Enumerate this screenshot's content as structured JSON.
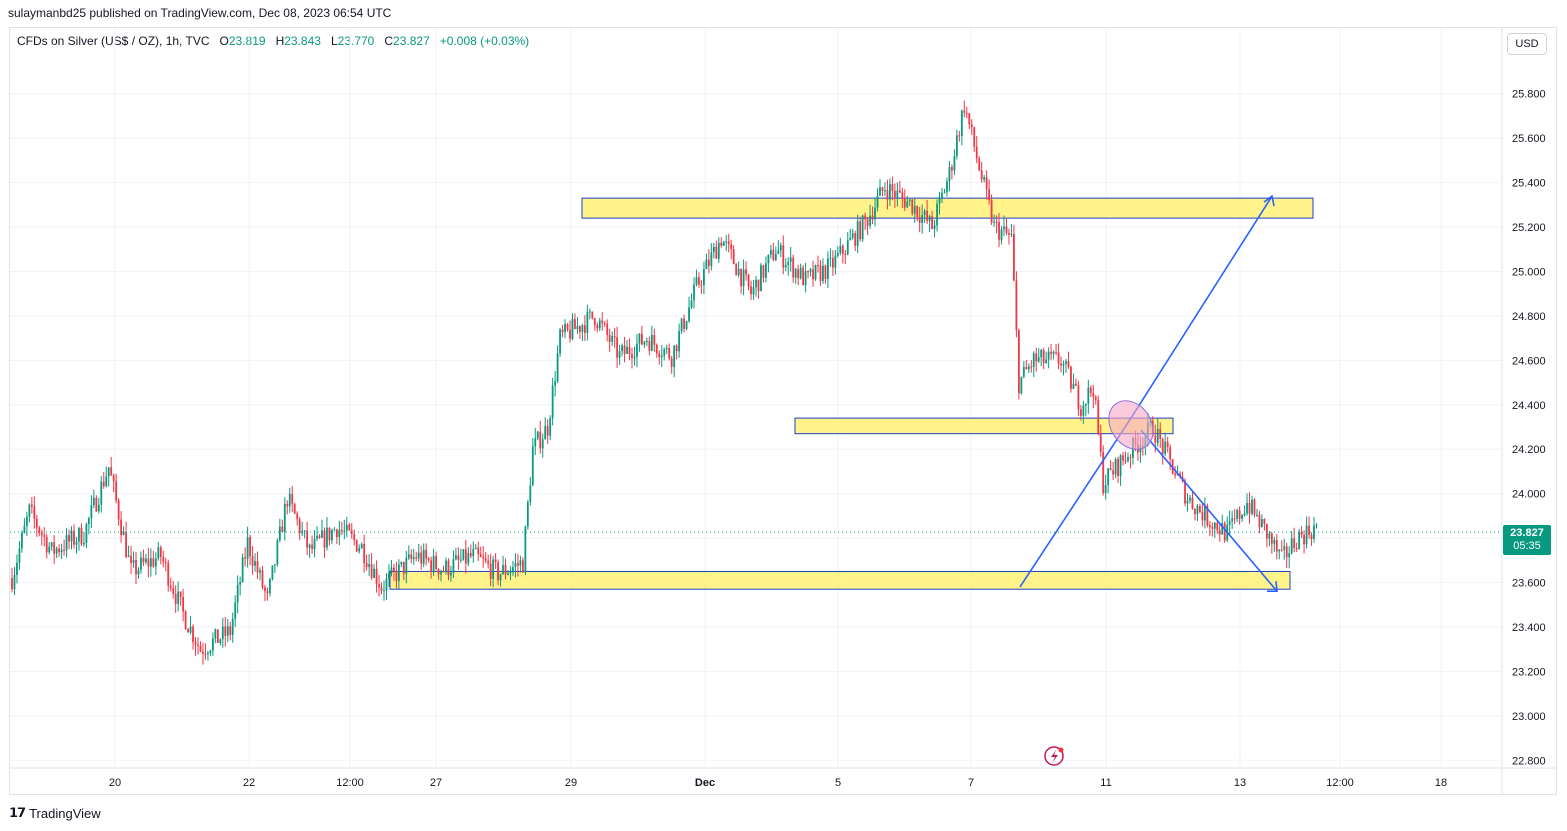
{
  "header": {
    "publisher_line": "sulaymanbd25 published on TradingView.com, Dec 08, 2023 06:54 UTC"
  },
  "legend": {
    "symbol": "CFDs on Silver (US$ / OZ), 1h, TVC",
    "open_label": "O",
    "open": "23.819",
    "high_label": "H",
    "high": "23.843",
    "low_label": "L",
    "low": "23.770",
    "close_label": "C",
    "close": "23.827",
    "change": "+0.008 (+0.03%)"
  },
  "currency": "USD",
  "last_price": {
    "price": "23.827",
    "countdown": "05:35"
  },
  "brand": {
    "name": "TradingView"
  },
  "colors": {
    "up": "#089981",
    "down": "#f23645",
    "zone_fill": "#fff176",
    "zone_border": "#1e40c8",
    "arrow": "#2962ff"
  },
  "chart_data": {
    "type": "candlestick",
    "y_axis": {
      "ticks": [
        "25.800",
        "25.600",
        "25.400",
        "25.200",
        "25.000",
        "24.800",
        "24.600",
        "24.400",
        "24.200",
        "24.000",
        "23.800",
        "23.600",
        "23.400",
        "23.200",
        "23.000",
        "22.800"
      ],
      "range": [
        22.75,
        25.98
      ]
    },
    "x_axis": {
      "ticks": [
        "20",
        "22",
        "12:00",
        "27",
        "29",
        "Dec",
        "5",
        "7",
        "11",
        "13",
        "12:00",
        "18"
      ]
    },
    "price_path": [
      [
        0,
        23.62
      ],
      [
        14,
        23.92
      ],
      [
        32,
        23.74
      ],
      [
        58,
        23.82
      ],
      [
        78,
        24.12
      ],
      [
        96,
        23.65
      ],
      [
        120,
        23.72
      ],
      [
        138,
        23.46
      ],
      [
        152,
        23.3
      ],
      [
        176,
        23.38
      ],
      [
        190,
        23.78
      ],
      [
        206,
        23.52
      ],
      [
        222,
        23.98
      ],
      [
        240,
        23.74
      ],
      [
        262,
        23.85
      ],
      [
        282,
        23.76
      ],
      [
        298,
        23.58
      ],
      [
        326,
        23.72
      ],
      [
        348,
        23.66
      ],
      [
        372,
        23.72
      ],
      [
        392,
        23.64
      ],
      [
        412,
        23.69
      ],
      [
        420,
        24.2
      ],
      [
        432,
        24.3
      ],
      [
        442,
        24.7
      ],
      [
        470,
        24.8
      ],
      [
        490,
        24.62
      ],
      [
        512,
        24.7
      ],
      [
        532,
        24.62
      ],
      [
        552,
        24.93
      ],
      [
        572,
        25.15
      ],
      [
        596,
        24.9
      ],
      [
        616,
        25.1
      ],
      [
        640,
        24.96
      ],
      [
        660,
        25.02
      ],
      [
        688,
        25.22
      ],
      [
        704,
        25.38
      ],
      [
        726,
        25.3
      ],
      [
        742,
        25.2
      ],
      [
        756,
        25.44
      ],
      [
        768,
        25.75
      ],
      [
        782,
        25.42
      ],
      [
        792,
        25.2
      ],
      [
        806,
        25.15
      ],
      [
        812,
        24.5
      ],
      [
        824,
        24.6
      ],
      [
        846,
        24.6
      ],
      [
        862,
        24.4
      ],
      [
        872,
        24.48
      ],
      [
        880,
        24.05
      ],
      [
        900,
        24.18
      ],
      [
        920,
        24.3
      ],
      [
        934,
        24.14
      ],
      [
        948,
        23.98
      ],
      [
        966,
        23.88
      ],
      [
        980,
        23.82
      ],
      [
        996,
        23.96
      ],
      [
        1012,
        23.82
      ],
      [
        1024,
        23.7
      ],
      [
        1036,
        23.8
      ],
      [
        1052,
        23.85
      ]
    ],
    "last_value": 23.827,
    "zones": [
      {
        "price_top": 25.33,
        "price_bottom": 25.24
      },
      {
        "price_top": 24.34,
        "price_bottom": 24.27
      },
      {
        "price_top": 23.65,
        "price_bottom": 23.57
      }
    ],
    "projections": [
      {
        "from": 23.58,
        "via": 24.34,
        "to": 25.33
      },
      {
        "from": 23.58,
        "via": 24.34,
        "to": 23.57
      }
    ]
  }
}
